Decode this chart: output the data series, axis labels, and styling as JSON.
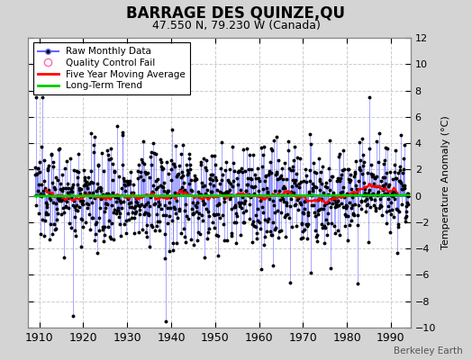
{
  "title": "BARRAGE DES QUINZE,QU",
  "subtitle": "47.550 N, 79.230 W (Canada)",
  "ylabel": "Temperature Anomaly (°C)",
  "attribution": "Berkeley Earth",
  "year_start": 1909.0,
  "year_end": 1993.92,
  "ylim": [
    -10,
    12
  ],
  "yticks": [
    -10,
    -8,
    -6,
    -4,
    -2,
    0,
    2,
    4,
    6,
    8,
    10,
    12
  ],
  "xlim": [
    1907.5,
    1994.5
  ],
  "xticks": [
    1910,
    1920,
    1930,
    1940,
    1950,
    1960,
    1970,
    1980,
    1990
  ],
  "bg_color": "#d4d4d4",
  "plot_bg_color": "#ffffff",
  "line_color": "#6666ff",
  "dot_color": "#000000",
  "ma_color": "#ff0000",
  "trend_color": "#00cc00",
  "qc_color": "#ff69b4",
  "seed": 137
}
